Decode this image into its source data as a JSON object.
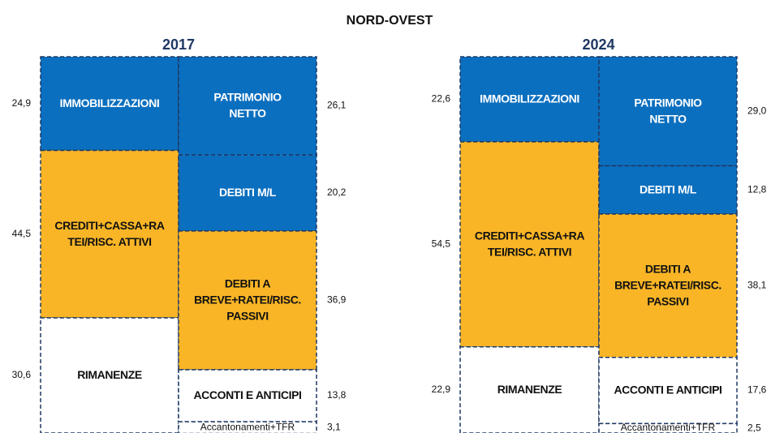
{
  "chart_data": {
    "type": "balance_sheet",
    "title": "NORD-OVEST",
    "ylim": [
      0,
      100
    ],
    "panels": [
      {
        "title": "2017",
        "assets": {
          "names": [
            [
              "IMMOBILIZZAZIONI"
            ],
            [
              "CREDITI+CASSA+RA",
              "TEI/RISC. ATTIVI"
            ],
            [
              "RIMANENZE"
            ]
          ],
          "colors": [
            "#0b6fbf",
            "#f9b526",
            "#ffffff"
          ],
          "values": [
            24.9,
            44.5,
            30.6
          ],
          "value_labels": [
            "24,9",
            "44,5",
            "30,6"
          ]
        },
        "liabilities": {
          "names": [
            [
              "PATRIMONIO",
              "NETTO"
            ],
            [
              "DEBITI M/L"
            ],
            [
              "DEBITI A",
              "BREVE+RATEI/RISC.",
              "PASSIVI"
            ],
            [
              "ACCONTI E ANTICIPI"
            ],
            [
              "Accantonamenti+TFR"
            ]
          ],
          "colors": [
            "#0b6fbf",
            "#0b6fbf",
            "#f9b526",
            "#ffffff",
            "#ffffff"
          ],
          "values": [
            26.1,
            20.2,
            36.9,
            13.8,
            3.1
          ],
          "value_labels": [
            "26,1",
            "20,2",
            "36,9",
            "13,8",
            "3,1"
          ]
        }
      },
      {
        "title": "2024",
        "assets": {
          "names": [
            [
              "IMMOBILIZZAZIONI"
            ],
            [
              "CREDITI+CASSA+RA",
              "TEI/RISC. ATTIVI"
            ],
            [
              "RIMANENZE"
            ]
          ],
          "colors": [
            "#0b6fbf",
            "#f9b526",
            "#ffffff"
          ],
          "values": [
            22.6,
            54.5,
            22.9
          ],
          "value_labels": [
            "22,6",
            "54,5",
            "22,9"
          ]
        },
        "liabilities": {
          "names": [
            [
              "PATRIMONIO",
              "NETTO"
            ],
            [
              "DEBITI M/L"
            ],
            [
              "DEBITI A",
              "BREVE+RATEI/RISC.",
              "PASSIVI"
            ],
            [
              "ACCONTI E ANTICIPI"
            ],
            [
              "Accantonamenti+TFR"
            ]
          ],
          "colors": [
            "#0b6fbf",
            "#0b6fbf",
            "#f9b526",
            "#ffffff",
            "#ffffff"
          ],
          "values": [
            29.0,
            12.8,
            38.1,
            17.6,
            2.5
          ],
          "value_labels": [
            "29,0",
            "12,8",
            "38,1",
            "17,6",
            "2,5"
          ]
        }
      }
    ]
  }
}
